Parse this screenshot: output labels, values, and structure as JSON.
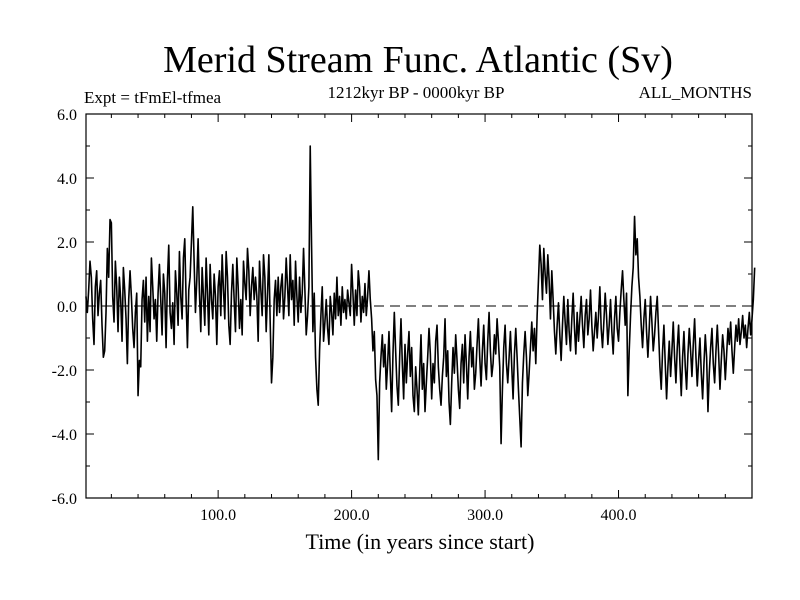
{
  "chart_data": {
    "type": "line",
    "title": "Merid Stream Func. Atlantic (Sv)",
    "subtitle_left": "Expt = tFmEl-tfmea",
    "subtitle_center": "1212kyr BP - 0000kyr BP",
    "subtitle_right": "ALL_MONTHS",
    "xlabel": "Time (in years since start)",
    "ylabel": "",
    "xlim": [
      1,
      500
    ],
    "ylim": [
      -6,
      6
    ],
    "x_ticks": [
      100,
      200,
      300,
      400
    ],
    "x_tick_labels": [
      "100.0",
      "200.0",
      "300.0",
      "400.0"
    ],
    "y_ticks": [
      -6,
      -4,
      -2,
      0,
      2,
      4,
      6
    ],
    "y_tick_labels": [
      "-6.0",
      "-4.0",
      "-2.0",
      "0.0",
      "2.0",
      "4.0",
      "6.0"
    ],
    "zero_line": true,
    "grid": false,
    "line_color": "#000000",
    "series": [
      {
        "name": "Merid Stream Func. Atlantic",
        "x_start": 1,
        "x_step": 1,
        "values": [
          0.3,
          -0.2,
          0.5,
          1.4,
          0.9,
          -0.4,
          -1.2,
          0.6,
          1.1,
          -0.3,
          0.4,
          0.8,
          -0.6,
          -1.6,
          -1.4,
          -0.2,
          1.8,
          0.9,
          2.7,
          2.6,
          0.3,
          -0.5,
          1.4,
          0.6,
          -0.8,
          0.9,
          0.2,
          -1.1,
          1.2,
          0.5,
          -0.4,
          -1.8,
          0.2,
          1.1,
          0.3,
          -0.7,
          -1.3,
          -0.2,
          0.4,
          -2.8,
          -1.7,
          -1.9,
          0.2,
          0.8,
          -0.5,
          0.9,
          -1.1,
          0.3,
          -0.8,
          1.5,
          0.6,
          -0.4,
          0.2,
          -1.1,
          0.4,
          1.3,
          0.2,
          -0.9,
          1.0,
          0.4,
          -1.3,
          0.8,
          1.9,
          -0.2,
          -0.7,
          0.1,
          -1.2,
          1.1,
          0.4,
          -0.6,
          1.7,
          0.3,
          -0.4,
          1.5,
          2.1,
          0.2,
          -1.3,
          0.5,
          0.9,
          2.0,
          3.1,
          1.4,
          -0.2,
          0.8,
          2.1,
          0.4,
          -0.8,
          1.2,
          0.3,
          -0.6,
          1.5,
          0.4,
          -0.9,
          1.3,
          0.2,
          -0.4,
          1.0,
          0.3,
          -1.2,
          0.6,
          1.1,
          -0.3,
          1.6,
          0.5,
          -0.4,
          1.7,
          0.9,
          -0.6,
          -1.2,
          0.4,
          1.3,
          0.2,
          -0.8,
          1.5,
          0.6,
          -0.7,
          0.2,
          -0.9,
          1.4,
          0.7,
          0.2,
          1.8,
          1.1,
          -0.3,
          0.6,
          1.2,
          0.2,
          0.9,
          0.3,
          -1.1,
          1.4,
          0.5,
          -0.3,
          1.6,
          0.9,
          -0.8,
          0.4,
          1.6,
          -0.5,
          -2.4,
          -1.6,
          0.2,
          0.8,
          -0.3,
          0.9,
          -0.2,
          0.6,
          1.0,
          -0.4,
          0.3,
          1.5,
          0.6,
          -0.3,
          1.6,
          0.2,
          0.8,
          -0.6,
          1.4,
          0.3,
          -0.5,
          0.9,
          -0.2,
          0.4,
          1.8,
          0.5,
          -0.9,
          -0.3,
          0.6,
          5.0,
          1.9,
          -0.8,
          0.4,
          -1.6,
          -2.6,
          -3.1,
          -1.4,
          -0.3,
          0.6,
          -1.1,
          -0.5,
          0.2,
          -0.7,
          -1.2,
          0.3,
          -0.2,
          -0.9,
          0.4,
          -0.4,
          0.9,
          -0.3,
          0.3,
          -0.6,
          0.6,
          -0.2,
          0.2,
          -0.4,
          0.5,
          0.1,
          -0.3,
          1.3,
          0.4,
          -0.6,
          0.5,
          -0.3,
          1.1,
          0.6,
          -0.5,
          0.3,
          -0.2,
          0.7,
          -0.3,
          0.3,
          1.1,
          0.2,
          -0.4,
          -1.4,
          -0.8,
          -2.3,
          -2.8,
          -4.8,
          -2.4,
          -1.6,
          -0.9,
          -1.9,
          -1.2,
          -2.6,
          -1.8,
          -0.8,
          -2.1,
          -3.3,
          -1.5,
          -0.2,
          -1.4,
          -2.5,
          -3.1,
          -1.6,
          -0.4,
          -1.8,
          -2.9,
          -1.2,
          -2.4,
          -1.5,
          -0.8,
          -2.2,
          -1.3,
          -2.8,
          -3.3,
          -1.9,
          -2.6,
          -3.4,
          -2.1,
          -0.9,
          -2.6,
          -1.8,
          -3.3,
          -2.4,
          -1.6,
          -0.7,
          -1.5,
          -2.9,
          -1.8,
          -2.4,
          -1.1,
          -0.6,
          -1.9,
          -2.6,
          -3.1,
          -2.2,
          -1.6,
          -0.4,
          -2.2,
          -1.4,
          -3.0,
          -3.7,
          -2.4,
          -1.3,
          -2.1,
          -0.9,
          -1.7,
          -2.6,
          -3.2,
          -1.8,
          -1.2,
          -2.4,
          -0.9,
          -1.8,
          -2.9,
          -1.6,
          -0.8,
          -1.9,
          -1.3,
          -2.6,
          -2.1,
          -1.2,
          -0.4,
          -1.6,
          -2.5,
          -1.4,
          -0.6,
          -1.8,
          -2.3,
          -1.1,
          -0.2,
          -1.4,
          -2.2,
          -1.8,
          -0.9,
          -1.5,
          -0.4,
          -1.1,
          -1.9,
          -4.3,
          -2.6,
          -1.3,
          -0.6,
          -1.8,
          -2.4,
          -1.6,
          -0.8,
          -1.9,
          -2.9,
          -1.5,
          -0.7,
          -1.6,
          -2.6,
          -3.5,
          -4.4,
          -2.4,
          -1.5,
          -0.8,
          -1.6,
          -2.8,
          -2.1,
          -1.3,
          -0.5,
          -1.4,
          -0.7,
          -1.8,
          -0.3,
          0.8,
          1.9,
          1.3,
          0.2,
          1.8,
          1.0,
          0.4,
          1.6,
          0.8,
          -0.4,
          1.1,
          0.2,
          -0.8,
          -1.5,
          -0.6,
          0.1,
          -0.9,
          -1.7,
          -0.6,
          0.3,
          -0.5,
          -1.2,
          0.2,
          -0.8,
          -1.4,
          -0.4,
          0.4,
          -0.7,
          -1.5,
          -0.2,
          -1.1,
          -0.4,
          0.3,
          -0.6,
          -1.3,
          -0.3,
          0.2,
          -0.9,
          -0.4,
          0.5,
          -0.6,
          -1.4,
          -0.8,
          -0.2,
          -1.0,
          -0.3,
          0.6,
          -0.7,
          -1.3,
          -0.5,
          0.4,
          -0.3,
          -1.2,
          -0.6,
          0.2,
          -0.8,
          -1.5,
          -0.4,
          0.3,
          -0.7,
          -1.1,
          -0.2,
          0.5,
          1.1,
          0.2,
          -0.6,
          0.4,
          -2.8,
          -1.4,
          -0.3,
          0.6,
          1.2,
          2.8,
          1.6,
          2.1,
          0.9,
          0.3,
          -0.6,
          -1.3,
          -0.4,
          0.2,
          -0.8,
          -1.6,
          -0.7,
          0.3,
          -0.5,
          -1.4,
          -0.9,
          -0.2,
          0.3,
          -0.8,
          -1.9,
          -2.6,
          -1.4,
          -0.6,
          -1.8,
          -2.9,
          -1.9,
          -1.1,
          -2.2,
          -1.4,
          -0.5,
          -1.6,
          -2.4,
          -1.3,
          -0.6,
          -1.8,
          -2.8,
          -1.6,
          -0.8,
          -1.9,
          -2.6,
          -1.5,
          -0.7,
          -1.4,
          -2.2,
          -1.2,
          -0.4,
          -1.6,
          -2.5,
          -1.7,
          -1.0,
          -2.1,
          -2.9,
          -1.8,
          -0.9,
          -1.6,
          -3.3,
          -2.1,
          -1.3,
          -0.7,
          -1.8,
          -2.4,
          -1.4,
          -0.6,
          -1.5,
          -2.6,
          -1.7,
          -0.9,
          -1.4,
          -2.3,
          -1.5,
          -0.7,
          -1.2,
          -0.5,
          -1.4,
          -2.1,
          -1.3,
          -0.6,
          -1.1,
          -0.4,
          -1.2,
          -0.8,
          -0.3,
          -1.0,
          -0.6,
          -1.3,
          -0.7,
          -0.2,
          -0.9,
          -0.4,
          0.2,
          1.2
        ]
      }
    ]
  }
}
